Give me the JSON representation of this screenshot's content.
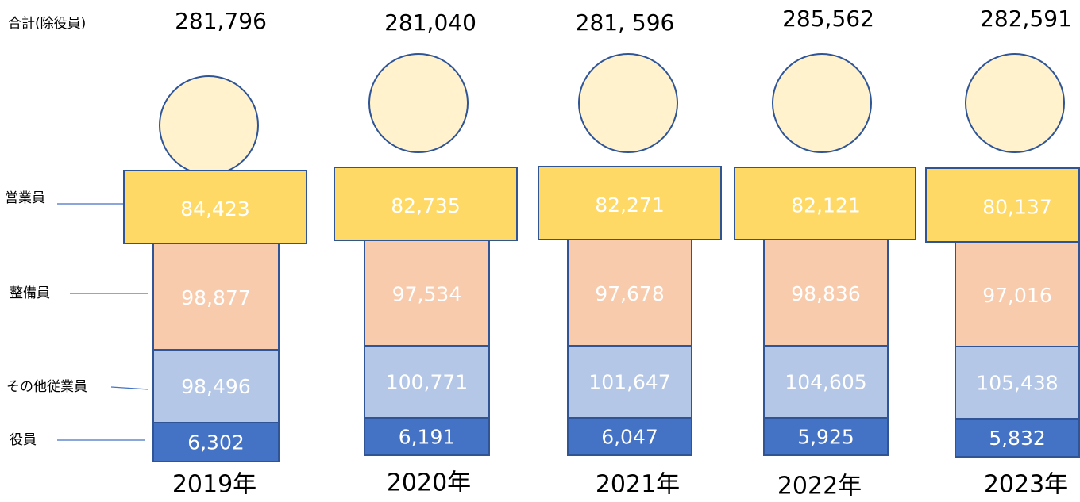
{
  "labels": {
    "total": "合計(除役員)",
    "sales": "営業員",
    "maintenance": "整備員",
    "other": "その他従業員",
    "officers": "役員"
  },
  "columns": [
    {
      "year": "2019年",
      "total": "281,796",
      "sales": "84,423",
      "maintenance": "98,877",
      "other": "98,496",
      "officers": "6,302"
    },
    {
      "year": "2020年",
      "total": "281,040",
      "sales": "82,735",
      "maintenance": "97,534",
      "other": "100,771",
      "officers": "6,191"
    },
    {
      "year": "2021年",
      "total": "281, 596",
      "sales": "82,271",
      "maintenance": "97,678",
      "other": "101,647",
      "officers": "6,047"
    },
    {
      "year": "2022年",
      "total": "285,562",
      "sales": "82,121",
      "maintenance": "98,836",
      "other": "104,605",
      "officers": "5,925"
    },
    {
      "year": "2023年",
      "total": "282,591",
      "sales": "80,137",
      "maintenance": "97,016",
      "other": "105,438",
      "officers": "5,832"
    }
  ]
}
